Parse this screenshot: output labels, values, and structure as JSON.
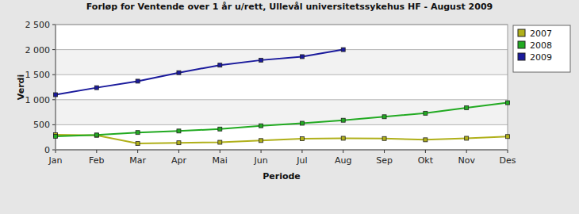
{
  "chart_data": {
    "type": "line",
    "title": "Forløp for Ventende over 1 år u/rett, Ullevål universitetssykehus HF - August 2009",
    "x_label": "Periode",
    "y_label": "Verdi",
    "categories": [
      "Jan",
      "Feb",
      "Mar",
      "Apr",
      "Mai",
      "Jun",
      "Jul",
      "Aug",
      "Sep",
      "Okt",
      "Nov",
      "Des"
    ],
    "series": [
      {
        "name": "2007",
        "color": "#b0b01a",
        "marker": "square",
        "values": [
          300,
          290,
          125,
          140,
          150,
          185,
          220,
          230,
          225,
          200,
          230,
          265
        ]
      },
      {
        "name": "2008",
        "color": "#22aa22",
        "marker": "square",
        "values": [
          270,
          295,
          345,
          375,
          415,
          480,
          530,
          590,
          660,
          730,
          840,
          940
        ]
      },
      {
        "name": "2009",
        "color": "#1a1a9c",
        "marker": "square",
        "values": [
          1100,
          1240,
          1370,
          1540,
          1690,
          1790,
          1860,
          2000,
          null,
          null,
          null,
          null
        ]
      }
    ],
    "ylim": [
      0,
      2500
    ],
    "yticks": [
      0,
      500,
      {
        "value": 1000,
        "label": "1 000"
      },
      {
        "value": 1500,
        "label": "1 500"
      },
      {
        "value": 2000,
        "label": "2 000"
      },
      {
        "value": 2500,
        "label": "2 500"
      }
    ],
    "grid": true,
    "legend": "right"
  }
}
